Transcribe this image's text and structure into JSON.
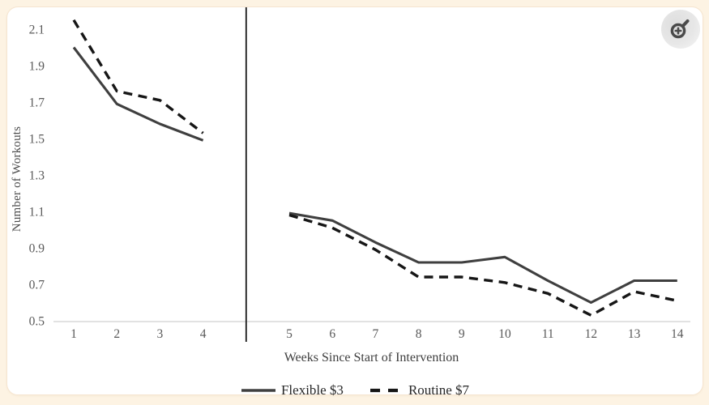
{
  "page": {
    "background_color": "#fdf3e3",
    "card_color": "#ffffff"
  },
  "controls": {
    "zoom_button": {
      "icon": "zoom-in-icon",
      "color": "#4a4a4a"
    }
  },
  "chart_data": {
    "type": "line",
    "title": "",
    "xlabel": "Weeks Since Start of Intervention",
    "ylabel": "Number of Workouts",
    "x": [
      1,
      2,
      3,
      4,
      5,
      6,
      7,
      8,
      9,
      10,
      11,
      12,
      13,
      14
    ],
    "gap_after_week": 4,
    "divider_note": "vertical black line separates week 4 and week 5",
    "ylim": [
      0.5,
      2.2
    ],
    "y_ticks": [
      "0.5",
      "0.7",
      "0.9",
      "1.1",
      "1.3",
      "1.5",
      "1.7",
      "1.9",
      "2.1"
    ],
    "y_tick_values": [
      0.5,
      0.7,
      0.9,
      1.1,
      1.3,
      1.5,
      1.7,
      1.9,
      2.1
    ],
    "grid": false,
    "legend_position": "bottom-center",
    "axis_color": "#d9d9d9",
    "tick_label_color": "#595959",
    "series": [
      {
        "name": "Flexible $3",
        "style": "solid",
        "color": "#3f3f3f",
        "values": [
          2.0,
          1.69,
          1.58,
          1.49,
          1.09,
          1.05,
          0.93,
          0.82,
          0.82,
          0.85,
          0.72,
          0.6,
          0.72,
          0.72
        ]
      },
      {
        "name": "Routine $7",
        "style": "dashed",
        "color": "#161616",
        "values": [
          2.15,
          1.76,
          1.71,
          1.53,
          1.08,
          1.01,
          0.89,
          0.74,
          0.74,
          0.71,
          0.65,
          0.53,
          0.66,
          0.61
        ]
      }
    ]
  }
}
